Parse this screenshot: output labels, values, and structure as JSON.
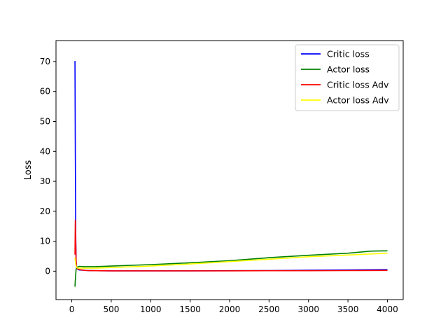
{
  "chart_data": {
    "type": "line",
    "title": "",
    "xlabel": "",
    "ylabel": "Loss",
    "xlim": [
      -200,
      4200
    ],
    "ylim": [
      -9.5,
      77
    ],
    "xticks": [
      0,
      500,
      1000,
      1500,
      2000,
      2500,
      3000,
      3500,
      4000
    ],
    "yticks": [
      0,
      10,
      20,
      30,
      40,
      50,
      60,
      70
    ],
    "grid": false,
    "legend_position": "top-right",
    "series": [
      {
        "name": "Critic loss",
        "color": "#0000ff",
        "x": [
          40,
          45,
          50,
          55,
          60,
          70,
          80,
          100,
          150,
          200,
          300,
          500,
          1000,
          1500,
          2000,
          2500,
          3000,
          3500,
          4000
        ],
        "y": [
          70.2,
          40,
          12,
          4,
          1.5,
          0.8,
          0.5,
          0.4,
          0.3,
          0.2,
          0.15,
          0.1,
          0.1,
          0.1,
          0.15,
          0.2,
          0.3,
          0.4,
          0.5
        ]
      },
      {
        "name": "Actor loss",
        "color": "#008000",
        "x": [
          40,
          45,
          50,
          55,
          60,
          70,
          80,
          100,
          150,
          200,
          300,
          500,
          1000,
          1500,
          2000,
          2500,
          3000,
          3500,
          3800,
          4000
        ],
        "y": [
          -5.2,
          -3,
          -1,
          0.5,
          1.0,
          1.3,
          1.5,
          1.6,
          1.5,
          1.5,
          1.5,
          1.7,
          2.2,
          2.8,
          3.5,
          4.5,
          5.3,
          6.0,
          6.7,
          6.8
        ]
      },
      {
        "name": "Critic loss Adv",
        "color": "#ff0000",
        "x": [
          40,
          45,
          50,
          55,
          60,
          70,
          80,
          100,
          150,
          200,
          300,
          500,
          1000,
          1500,
          2000,
          2500,
          3000,
          3500,
          4000
        ],
        "y": [
          5.5,
          17,
          10,
          3.5,
          1.5,
          0.9,
          0.7,
          0.5,
          0.3,
          0.2,
          0.15,
          0.1,
          0.1,
          0.1,
          0.1,
          0.15,
          0.15,
          0.2,
          0.25
        ]
      },
      {
        "name": "Actor loss Adv",
        "color": "#ffff00",
        "x": [
          40,
          45,
          50,
          55,
          60,
          70,
          80,
          100,
          150,
          200,
          300,
          500,
          1000,
          1500,
          2000,
          2500,
          3000,
          3500,
          4000
        ],
        "y": [
          4.5,
          3.5,
          2.5,
          1.8,
          1.3,
          1.1,
          1.0,
          1.0,
          1.0,
          1.0,
          1.0,
          1.2,
          1.7,
          2.4,
          3.2,
          4.0,
          4.8,
          5.4,
          6.0
        ]
      }
    ]
  }
}
